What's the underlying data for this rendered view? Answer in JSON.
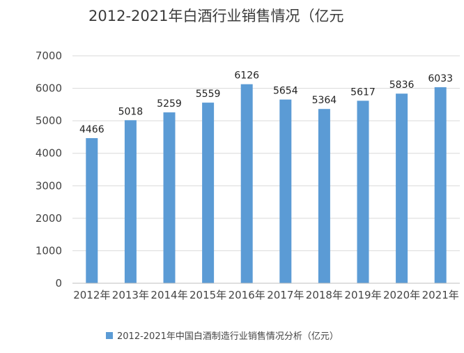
{
  "chart_data": {
    "type": "bar",
    "title": "2012-2021年白酒行业销售情况（亿元",
    "categories": [
      "2012年",
      "2013年",
      "2014年",
      "2015年",
      "2016年",
      "2017年",
      "2018年",
      "2019年",
      "2020年",
      "2021年"
    ],
    "series": [
      {
        "name": "2012-2021年中国白酒制造行业销售情况分析（亿元）",
        "values": [
          4466,
          5018,
          5259,
          5559,
          6126,
          5654,
          5364,
          5617,
          5836,
          6033
        ],
        "color": "#5b9bd5"
      }
    ],
    "yticks": [
      "0",
      "1000",
      "2000",
      "3000",
      "4000",
      "5000",
      "6000",
      "7000"
    ],
    "ylim": [
      0,
      7000
    ],
    "grid": true,
    "legend": "bottom",
    "data_labels": true
  }
}
